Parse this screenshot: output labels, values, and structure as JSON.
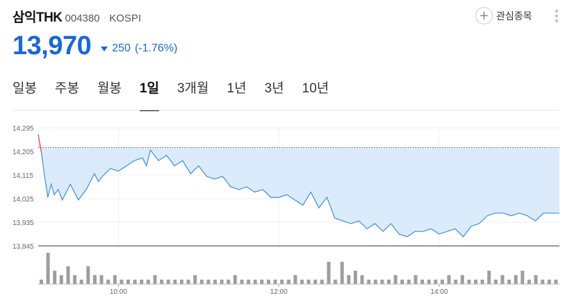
{
  "stock": {
    "name": "삼익THK",
    "code": "004380",
    "separator": "·",
    "market": "KOSPI",
    "price": "13,970",
    "change": "250",
    "change_pct": "(-1.76%)",
    "direction": "down"
  },
  "actions": {
    "watchlist_label": "관심종목",
    "plus_icon": "plus-icon",
    "more_icon": "more-vertical-icon"
  },
  "tabs": [
    {
      "label": "일봉",
      "active": false
    },
    {
      "label": "주봉",
      "active": false
    },
    {
      "label": "월봉",
      "active": false
    },
    {
      "label": "1일",
      "active": true
    },
    {
      "label": "3개월",
      "active": false
    },
    {
      "label": "1년",
      "active": false
    },
    {
      "label": "3년",
      "active": false
    },
    {
      "label": "10년",
      "active": false
    }
  ],
  "colors": {
    "price_down": "#1b66d8",
    "line": "#3a8ee6",
    "area": "#dcebfb",
    "up_segment": "#e53935",
    "volume_bar": "#9e9e9e"
  },
  "chart_data": {
    "type": "area",
    "ylim": [
      13845,
      14295
    ],
    "y_ticks": [
      "14,295",
      "14,205",
      "14,115",
      "14,025",
      "13,935",
      "13,845"
    ],
    "reference_price": 14220,
    "x_ticks": [
      "10:00",
      "12:00",
      "14:00"
    ],
    "x_tick_times": [
      10,
      12,
      14
    ],
    "x_range": [
      9,
      15.5
    ],
    "line_end_time": 15.3,
    "price_series": {
      "x": [
        9.0,
        9.04,
        9.08,
        9.12,
        9.16,
        9.2,
        9.25,
        9.3,
        9.4,
        9.5,
        9.6,
        9.7,
        9.75,
        9.8,
        9.9,
        10.0,
        10.1,
        10.2,
        10.3,
        10.35,
        10.4,
        10.5,
        10.6,
        10.7,
        10.8,
        10.9,
        11.0,
        11.1,
        11.2,
        11.3,
        11.4,
        11.5,
        11.6,
        11.7,
        11.8,
        11.9,
        12.0,
        12.1,
        12.2,
        12.3,
        12.4,
        12.5,
        12.6,
        12.7,
        12.8,
        12.9,
        13.0,
        13.1,
        13.2,
        13.3,
        13.4,
        13.5,
        13.6,
        13.7,
        13.8,
        13.9,
        14.0,
        14.1,
        14.2,
        14.3,
        14.4,
        14.5,
        14.6,
        14.7,
        14.8,
        14.9,
        15.0,
        15.1,
        15.2,
        15.3
      ],
      "values": [
        14270,
        14200,
        14110,
        14030,
        14080,
        14040,
        14060,
        14020,
        14080,
        14020,
        14060,
        14120,
        14090,
        14110,
        14140,
        14130,
        14150,
        14170,
        14180,
        14150,
        14210,
        14170,
        14190,
        14150,
        14170,
        14120,
        14150,
        14110,
        14100,
        14110,
        14070,
        14060,
        14070,
        14050,
        14060,
        14030,
        14030,
        14040,
        14020,
        14000,
        14050,
        13990,
        14030,
        13950,
        13940,
        13930,
        13940,
        13910,
        13930,
        13900,
        13930,
        13890,
        13880,
        13900,
        13900,
        13910,
        13890,
        13900,
        13910,
        13880,
        13920,
        13930,
        13960,
        13970,
        13970,
        13960,
        13970,
        13960,
        13940,
        13970
      ]
    },
    "volume_series": {
      "values": [
        1,
        7,
        3,
        2,
        4,
        2,
        1,
        4,
        2,
        2,
        1,
        2,
        1,
        1,
        1,
        1,
        1,
        2,
        1,
        1,
        1,
        1,
        1,
        2,
        1,
        1,
        1,
        1,
        1,
        2,
        1,
        1,
        1,
        1,
        1,
        1,
        1,
        1,
        2,
        1,
        1,
        1,
        1,
        5,
        1,
        5,
        2,
        3,
        2,
        1,
        1,
        1,
        1,
        2,
        1,
        1,
        2,
        1,
        1,
        1,
        1,
        2,
        1,
        2,
        1,
        1,
        1,
        3,
        1,
        2,
        1,
        2,
        3,
        1,
        2,
        1,
        1,
        1
      ]
    }
  }
}
